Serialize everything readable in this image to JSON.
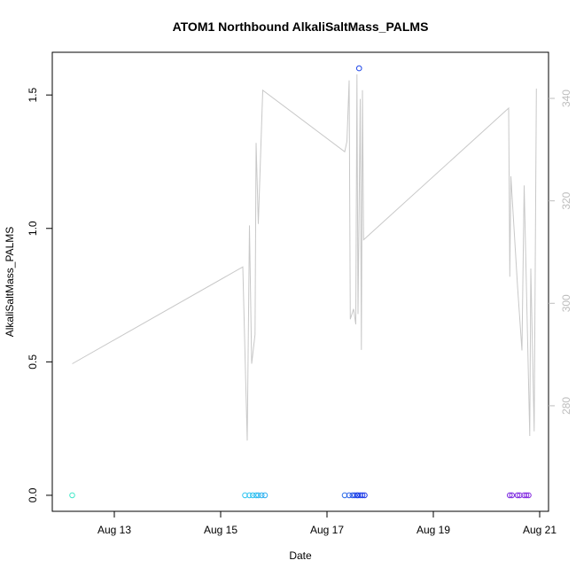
{
  "chart_data": {
    "type": "scatter",
    "title": "ATOM1 Northbound AlkaliSaltMass_PALMS",
    "xlabel": "Date",
    "ylabel": "AlkaliSaltMass_PALMS",
    "x_axis": {
      "type": "date",
      "range": [
        "2016-08-11T20:00",
        "2016-08-21T04:00"
      ],
      "ticks": [
        {
          "value": "2016-08-13",
          "label": "Aug 13"
        },
        {
          "value": "2016-08-15",
          "label": "Aug 15"
        },
        {
          "value": "2016-08-17",
          "label": "Aug 17"
        },
        {
          "value": "2016-08-19",
          "label": "Aug 19"
        },
        {
          "value": "2016-08-21",
          "label": "Aug 21"
        }
      ]
    },
    "y_left": {
      "range": [
        -0.06,
        1.66
      ],
      "ticks": [
        {
          "value": 0.0,
          "label": "0.0"
        },
        {
          "value": 0.5,
          "label": "0.5"
        },
        {
          "value": 1.0,
          "label": "1.0"
        },
        {
          "value": 1.5,
          "label": "1.5"
        }
      ]
    },
    "y_right": {
      "range": [
        259.4,
        349.0
      ],
      "color": "#bdbdbd",
      "ticks": [
        {
          "value": 280,
          "label": "280"
        },
        {
          "value": 300,
          "label": "300"
        },
        {
          "value": 320,
          "label": "320"
        },
        {
          "value": 340,
          "label": "340"
        }
      ]
    },
    "grid": false,
    "legend": "none",
    "series": [
      {
        "kind": "points",
        "axis": "left",
        "marker": "open-circle",
        "points": [
          {
            "x": "2016-08-12T05:00",
            "y": 0.0,
            "color": "#40e8c8"
          },
          {
            "x": "2016-08-15T11:00",
            "y": 0.0,
            "color": "#2ec4f0"
          },
          {
            "x": "2016-08-15T13:00",
            "y": 0.0,
            "color": "#2ec4f0"
          },
          {
            "x": "2016-08-15T14:30",
            "y": 0.0,
            "color": "#2ec4f0"
          },
          {
            "x": "2016-08-15T16:00",
            "y": 0.0,
            "color": "#2ebef0"
          },
          {
            "x": "2016-08-15T17:00",
            "y": 0.0,
            "color": "#2eb8f0"
          },
          {
            "x": "2016-08-15T18:30",
            "y": 0.0,
            "color": "#2eb4f0"
          },
          {
            "x": "2016-08-15T20:00",
            "y": 0.0,
            "color": "#2eaef0"
          },
          {
            "x": "2016-08-17T08:00",
            "y": 0.0,
            "color": "#2a6ce8"
          },
          {
            "x": "2016-08-17T10:00",
            "y": 0.0,
            "color": "#2a60e8"
          },
          {
            "x": "2016-08-17T11:30",
            "y": 0.0,
            "color": "#2858e8"
          },
          {
            "x": "2016-08-17T12:30",
            "y": 0.0,
            "color": "#2650e8"
          },
          {
            "x": "2016-08-17T13:30",
            "y": 0.0,
            "color": "#2448e8"
          },
          {
            "x": "2016-08-17T14:00",
            "y": 0.0,
            "color": "#2244e8"
          },
          {
            "x": "2016-08-17T15:00",
            "y": 0.0,
            "color": "#2040e8"
          },
          {
            "x": "2016-08-17T16:00",
            "y": 0.0,
            "color": "#1e3ce8"
          },
          {
            "x": "2016-08-17T17:00",
            "y": 0.0,
            "color": "#1e38e8"
          },
          {
            "x": "2016-08-17T14:30",
            "y": 1.6,
            "color": "#1e46e8"
          },
          {
            "x": "2016-08-20T10:30",
            "y": 0.0,
            "color": "#7a28e0"
          },
          {
            "x": "2016-08-20T11:30",
            "y": 0.0,
            "color": "#7a28e0"
          },
          {
            "x": "2016-08-20T14:00",
            "y": 0.0,
            "color": "#7c28e0"
          },
          {
            "x": "2016-08-20T15:00",
            "y": 0.0,
            "color": "#7e28e0"
          },
          {
            "x": "2016-08-20T17:00",
            "y": 0.0,
            "color": "#8028e0"
          },
          {
            "x": "2016-08-20T18:00",
            "y": 0.0,
            "color": "#8228e0"
          },
          {
            "x": "2016-08-20T19:00",
            "y": 0.0,
            "color": "#8428e0"
          }
        ]
      },
      {
        "kind": "line",
        "axis": "right",
        "color": "#c8c8c8",
        "points": [
          {
            "x": "2016-08-12T05:00",
            "y": 288.2
          },
          {
            "x": "2016-08-15T10:00",
            "y": 307.1
          },
          {
            "x": "2016-08-15T11:00",
            "y": 290.0
          },
          {
            "x": "2016-08-15T12:00",
            "y": 273.2
          },
          {
            "x": "2016-08-15T13:00",
            "y": 315.2
          },
          {
            "x": "2016-08-15T14:00",
            "y": 288.2
          },
          {
            "x": "2016-08-15T15:30",
            "y": 293.9
          },
          {
            "x": "2016-08-15T16:00",
            "y": 331.3
          },
          {
            "x": "2016-08-15T17:00",
            "y": 315.5
          },
          {
            "x": "2016-08-15T19:00",
            "y": 341.6
          },
          {
            "x": "2016-08-17T08:00",
            "y": 329.6
          },
          {
            "x": "2016-08-17T09:00",
            "y": 331.6
          },
          {
            "x": "2016-08-17T10:00",
            "y": 343.5
          },
          {
            "x": "2016-08-17T10:30",
            "y": 296.9
          },
          {
            "x": "2016-08-17T12:00",
            "y": 298.9
          },
          {
            "x": "2016-08-17T13:00",
            "y": 295.9
          },
          {
            "x": "2016-08-17T13:30",
            "y": 344.7
          },
          {
            "x": "2016-08-17T14:00",
            "y": 297.9
          },
          {
            "x": "2016-08-17T15:00",
            "y": 339.9
          },
          {
            "x": "2016-08-17T15:30",
            "y": 290.9
          },
          {
            "x": "2016-08-17T16:00",
            "y": 341.6
          },
          {
            "x": "2016-08-17T16:30",
            "y": 312.4
          },
          {
            "x": "2016-08-20T10:00",
            "y": 338.1
          },
          {
            "x": "2016-08-20T10:30",
            "y": 305.2
          },
          {
            "x": "2016-08-20T11:00",
            "y": 324.8
          },
          {
            "x": "2016-08-20T14:00",
            "y": 303.4
          },
          {
            "x": "2016-08-20T16:00",
            "y": 290.8
          },
          {
            "x": "2016-08-20T17:00",
            "y": 323.0
          },
          {
            "x": "2016-08-20T19:30",
            "y": 274.1
          },
          {
            "x": "2016-08-20T20:00",
            "y": 306.8
          },
          {
            "x": "2016-08-20T21:30",
            "y": 275.0
          },
          {
            "x": "2016-08-20T22:30",
            "y": 341.9
          }
        ]
      }
    ]
  }
}
